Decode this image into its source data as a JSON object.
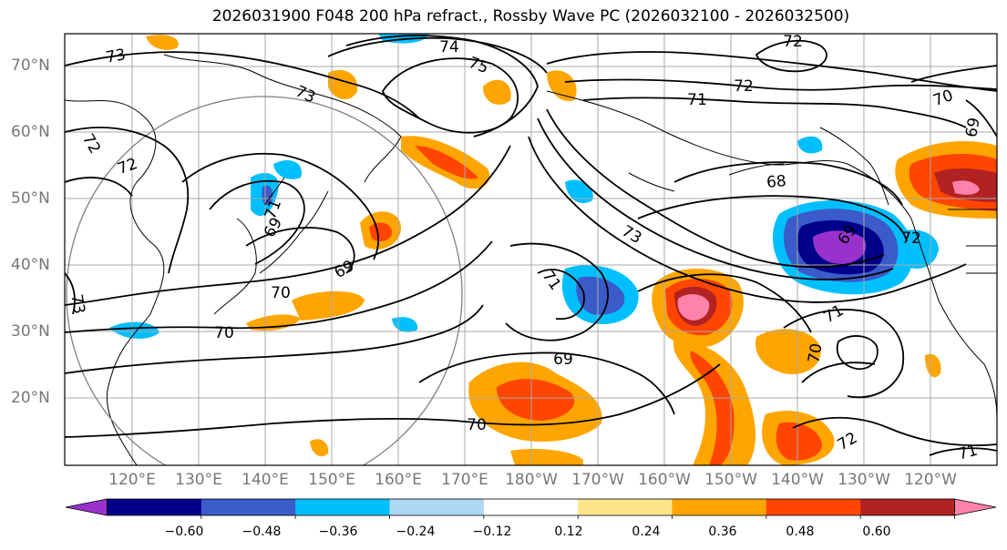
{
  "title": "2026031900 F048 200 hPa refract., Rossby Wave PC (2026032100 - 2026032500)",
  "latitude_labels": [
    "70°N",
    "60°N",
    "50°N",
    "40°N",
    "30°N",
    "20°N"
  ],
  "longitude_labels": [
    "120°E",
    "130°E",
    "140°E",
    "150°E",
    "160°E",
    "170°E",
    "180°W",
    "170°W",
    "160°W",
    "150°W",
    "140°W",
    "130°W",
    "120°W"
  ],
  "contour_labels": [
    "74",
    "75",
    "73",
    "73",
    "72",
    "71",
    "72",
    "70",
    "69",
    "72",
    "72",
    "71",
    "68",
    "69",
    "69",
    "70",
    "73",
    "71",
    "72",
    "70",
    "69",
    "71",
    "70",
    "72",
    "70",
    "71",
    "73",
    "69"
  ],
  "colorbar": {
    "tick_labels": [
      "−0.60",
      "−0.48",
      "−0.36",
      "−0.24",
      "−0.12",
      "0.12",
      "0.24",
      "0.36",
      "0.48",
      "0.60"
    ],
    "colors": [
      "#9932cc",
      "#00008b",
      "#3a5bc9",
      "#00bfff",
      "#add8f5",
      "#ffffff",
      "#ffe58a",
      "#ffa500",
      "#ff4500",
      "#b22222",
      "#ff82ab"
    ]
  }
}
